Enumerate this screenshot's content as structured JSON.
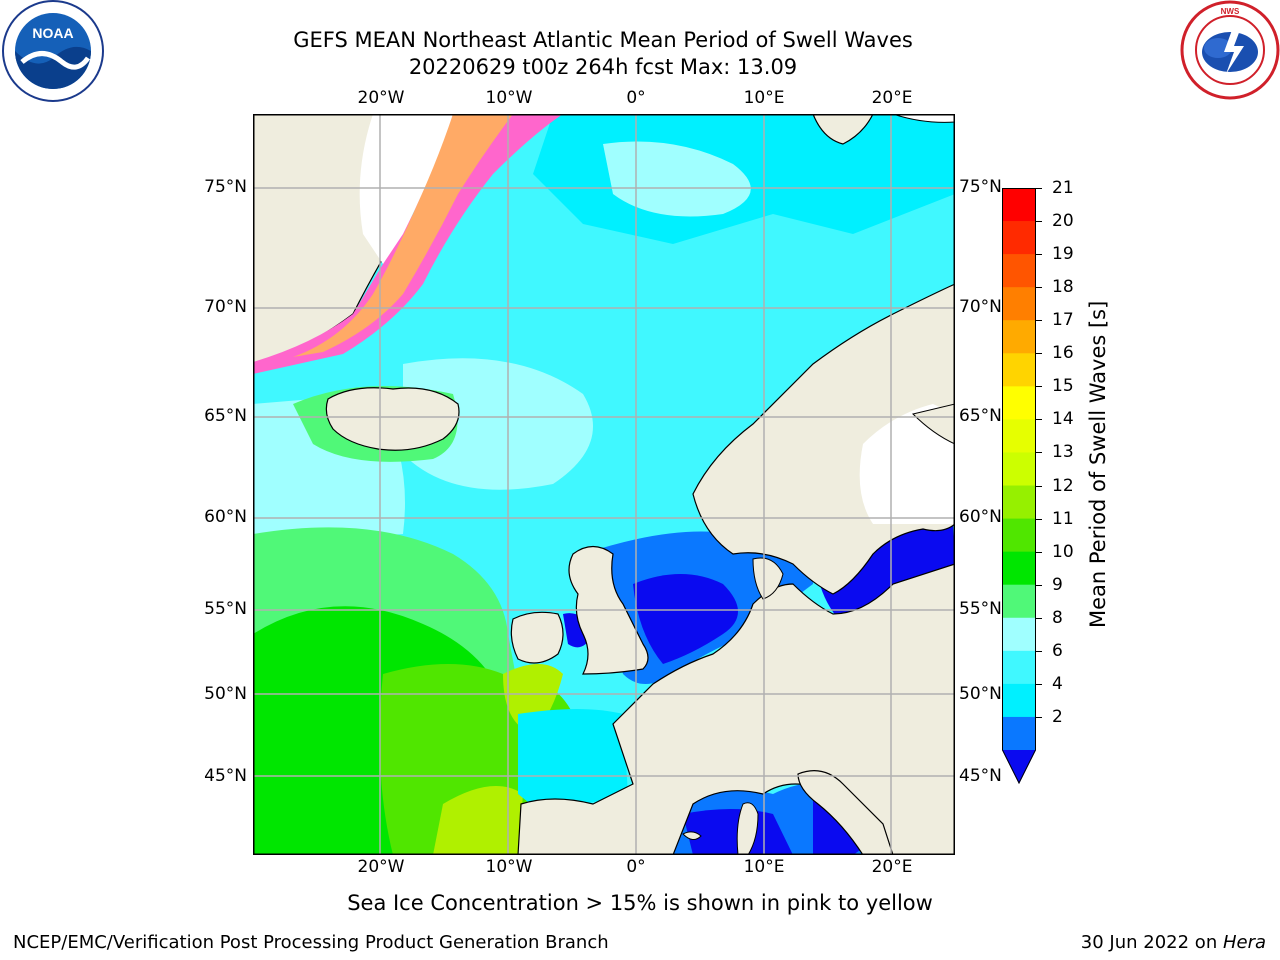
{
  "header": {
    "title_line1": "GEFS MEAN Northeast Atlantic Mean Period of Swell Waves",
    "title_line2": "20220629 t00z 264h fcst   Max: 13.09"
  },
  "logos": {
    "noaa_text": "NOAA",
    "noaa_ring": "NATIONAL OCEANIC AND ATMOSPHERIC ADMINISTRATION · U.S. DEPARTMENT OF COMMERCE",
    "nws_ring": "NATIONAL WEATHER SERVICE"
  },
  "map": {
    "lon_labels_top": [
      "20°W",
      "10°W",
      "0°",
      "10°E",
      "20°E"
    ],
    "lon_labels_bottom": [
      "20°W",
      "10°W",
      "0°",
      "10°E",
      "20°E"
    ],
    "lat_labels_left": [
      "75°N",
      "70°N",
      "65°N",
      "60°N",
      "55°N",
      "50°N",
      "45°N"
    ],
    "lat_labels_right": [
      "75°N",
      "70°N",
      "65°N",
      "60°N",
      "55°N",
      "50°N",
      "45°N"
    ],
    "colors": {
      "ocean_low": "#0a0af0",
      "ocean_2_4": "#0a78ff",
      "ocean_4_6": "#00f0ff",
      "ocean_6_8": "#40f8ff",
      "ocean_8_9": "#a0ffff",
      "ocean_9_10": "#50f878",
      "ocean_10_11": "#00e600",
      "ocean_11_12": "#50e600",
      "ocean_12_13": "#b0f000",
      "land": "#efedde",
      "ice": "#ff66cc"
    }
  },
  "colorbar": {
    "label": "Mean Period of Swell Waves [s]",
    "ticks": [
      "21",
      "20",
      "19",
      "18",
      "17",
      "16",
      "15",
      "14",
      "13",
      "12",
      "11",
      "10",
      "9",
      "8",
      "6",
      "4",
      "2"
    ],
    "colors": [
      "#ff0000",
      "#ff2a00",
      "#ff5500",
      "#ff7f00",
      "#ffaa00",
      "#ffd400",
      "#ffff00",
      "#e6ff00",
      "#ccff00",
      "#96f000",
      "#50e600",
      "#00e600",
      "#50f878",
      "#a0ffff",
      "#40f8ff",
      "#00f0ff",
      "#0a78ff",
      "#0a0af0"
    ]
  },
  "caption": "Sea Ice Concentration > 15% is shown in pink to yellow",
  "footer": {
    "left": "NCEP/EMC/Verification Post Processing Product Generation Branch",
    "right_date": "30 Jun 2022 on ",
    "right_machine": "Hera"
  }
}
